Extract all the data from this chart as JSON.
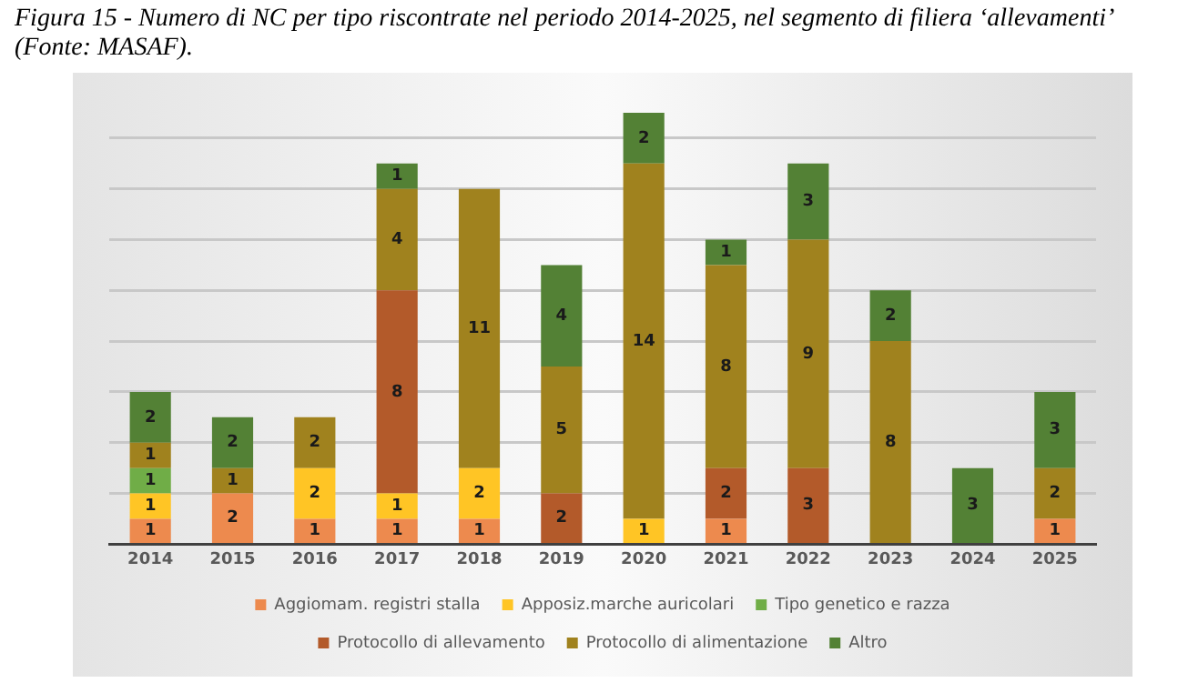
{
  "chart_data": {
    "type": "bar",
    "title": "Figura 15 - Numero di NC per tipo riscontrate nel periodo 2014-2025, nel segmento di filiera ‘allevamenti’ (Fonte: MASAF).",
    "categories": [
      "2014",
      "2015",
      "2016",
      "2017",
      "2018",
      "2019",
      "2020",
      "2021",
      "2022",
      "2023",
      "2024",
      "2025"
    ],
    "stacked": true,
    "data_labels": true,
    "grid": "y",
    "legend": "bottom",
    "tick_labels": "x",
    "yticks": [
      {
        "value": 0,
        "label": null
      },
      {
        "value": 2,
        "label": null
      },
      {
        "value": 4,
        "label": null
      },
      {
        "value": 6,
        "label": null
      },
      {
        "value": 8,
        "label": null
      },
      {
        "value": 10,
        "label": null
      },
      {
        "value": 12,
        "label": null
      },
      {
        "value": 14,
        "label": null
      },
      {
        "value": 16,
        "label": null
      }
    ],
    "series": [
      {
        "name": "Aggiomam. registri stalla",
        "color": "#ed8a4e",
        "values": [
          1,
          2,
          1,
          1,
          1,
          null,
          null,
          1,
          null,
          null,
          null,
          1
        ]
      },
      {
        "name": "Apposiz.marche auricolari",
        "color": "#ffc525",
        "values": [
          1,
          null,
          2,
          1,
          2,
          null,
          1,
          null,
          null,
          null,
          null,
          null
        ]
      },
      {
        "name": "Tipo genetico e razza",
        "color": "#70ad47",
        "values": [
          1,
          null,
          null,
          null,
          null,
          null,
          null,
          null,
          null,
          null,
          null,
          null
        ]
      },
      {
        "name": "Protocollo di allevamento",
        "color": "#b35a2a",
        "values": [
          null,
          null,
          null,
          8,
          null,
          2,
          null,
          2,
          3,
          null,
          null,
          null
        ]
      },
      {
        "name": "Protocollo di alimentazione",
        "color": "#a0821e",
        "values": [
          1,
          1,
          2,
          4,
          11,
          5,
          14,
          8,
          9,
          8,
          null,
          2
        ]
      },
      {
        "name": "Altro",
        "color": "#538135",
        "values": [
          2,
          2,
          null,
          1,
          null,
          4,
          2,
          1,
          3,
          2,
          3,
          3
        ]
      }
    ]
  }
}
